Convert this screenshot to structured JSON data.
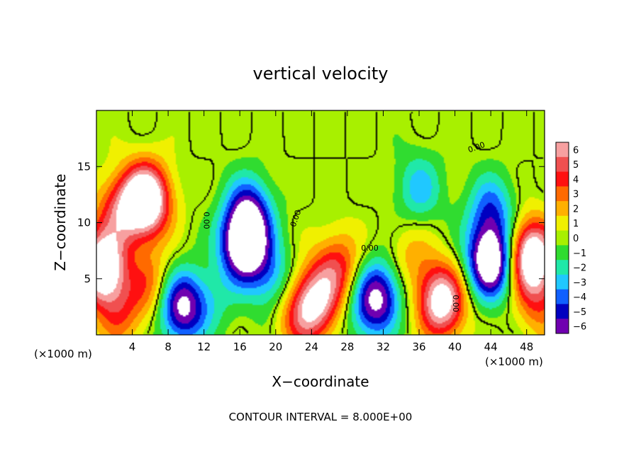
{
  "chart_data": {
    "type": "heatmap",
    "title": "vertical velocity",
    "xlabel": "X−coordinate",
    "ylabel": "Z−coordinate",
    "x_unit_left": "(×1000 m)",
    "x_unit_right": "(×1000 m)",
    "footer": "CONTOUR INTERVAL = 8.000E+00",
    "xlim": [
      0,
      50
    ],
    "ylim": [
      0,
      20
    ],
    "x_ticks": [
      4,
      8,
      12,
      16,
      20,
      24,
      28,
      32,
      36,
      40,
      44,
      48
    ],
    "x_tick_labels": [
      "4",
      "8",
      "12",
      "16",
      "20",
      "24",
      "28",
      "32",
      "36",
      "40",
      "44",
      "48"
    ],
    "y_ticks": [
      5,
      10,
      15
    ],
    "y_tick_labels": [
      "5",
      "10",
      "15"
    ],
    "colorbar": {
      "levels": [
        6,
        5,
        4,
        3,
        2,
        1,
        0,
        -1,
        -2,
        -3,
        -4,
        -5,
        -6
      ],
      "labels": [
        "6",
        "5",
        "4",
        "3",
        "2",
        "1",
        "0",
        "−1",
        "−2",
        "−3",
        "−4",
        "−5",
        "−6"
      ],
      "colors": [
        "#f7a0a0",
        "#f05050",
        "#ff1010",
        "#ff6a00",
        "#ffb000",
        "#f0f000",
        "#a8f000",
        "#30dc30",
        "#20e8a8",
        "#20c8ff",
        "#1060ff",
        "#0000c0",
        "#7000b0"
      ]
    },
    "contour_labels": [
      "0.00",
      "0.00",
      "0.00",
      "0.00",
      "0.00"
    ],
    "field_features": [
      {
        "x": 5.5,
        "z": 12,
        "value": 10
      },
      {
        "x": 2.5,
        "z": 11,
        "value": 4
      },
      {
        "x": 0.6,
        "z": 6,
        "value": 9
      },
      {
        "x": 6,
        "z": 4.5,
        "value": 3
      },
      {
        "x": 2.5,
        "z": 2,
        "value": 3
      },
      {
        "x": 9.5,
        "z": 2.5,
        "value": -7
      },
      {
        "x": 16.5,
        "z": 8,
        "value": -9
      },
      {
        "x": 17,
        "z": 11,
        "value": -5
      },
      {
        "x": 19.5,
        "z": 5,
        "value": -3
      },
      {
        "x": 24.5,
        "z": 3,
        "value": 6
      },
      {
        "x": 22.5,
        "z": 1.5,
        "value": 3
      },
      {
        "x": 27,
        "z": 6,
        "value": 4
      },
      {
        "x": 31.5,
        "z": 3.5,
        "value": -6
      },
      {
        "x": 30,
        "z": 2,
        "value": -2
      },
      {
        "x": 36,
        "z": 13,
        "value": -3
      },
      {
        "x": 38.5,
        "z": 3,
        "value": 8
      },
      {
        "x": 44,
        "z": 6.5,
        "value": -9
      },
      {
        "x": 44,
        "z": 11,
        "value": -4
      },
      {
        "x": 48.5,
        "z": 7,
        "value": 9
      },
      {
        "x": 49.5,
        "z": 3,
        "value": 3
      },
      {
        "x": 13,
        "z": 3,
        "value": -1.5
      },
      {
        "x": 35,
        "z": 7,
        "value": 2
      }
    ]
  }
}
